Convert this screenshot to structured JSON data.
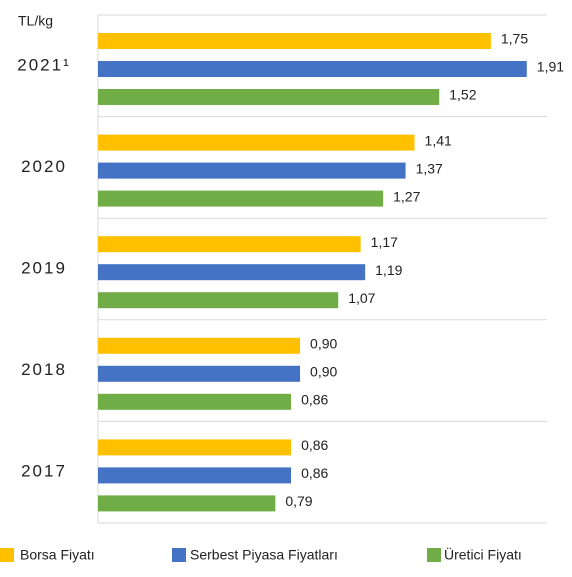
{
  "chart_data": {
    "type": "bar",
    "orientation": "horizontal",
    "y_label": "TL/kg",
    "categories": [
      "2021¹",
      "2020",
      "2019",
      "2018",
      "2017"
    ],
    "series": [
      {
        "name": "Borsa Fiyatı",
        "color": "#FFC000",
        "values": [
          1.75,
          1.41,
          1.17,
          0.9,
          0.86
        ],
        "value_labels": [
          "1,75",
          "1,41",
          "1,17",
          "0,90",
          "0,86"
        ]
      },
      {
        "name": "Serbest Piyasa Fiyatları",
        "color": "#4472C4",
        "values": [
          1.91,
          1.37,
          1.19,
          0.9,
          0.86
        ],
        "value_labels": [
          "1,91",
          "1,37",
          "1,19",
          "0,90",
          "0,86"
        ]
      },
      {
        "name": "Üretici Fiyatı",
        "color": "#70AD47",
        "values": [
          1.52,
          1.27,
          1.07,
          0.86,
          0.79
        ],
        "value_labels": [
          "1,52",
          "1,27",
          "1,07",
          "0,86",
          "0,79"
        ]
      }
    ],
    "xlim": [
      0,
      2
    ],
    "legend": "bottom"
  }
}
